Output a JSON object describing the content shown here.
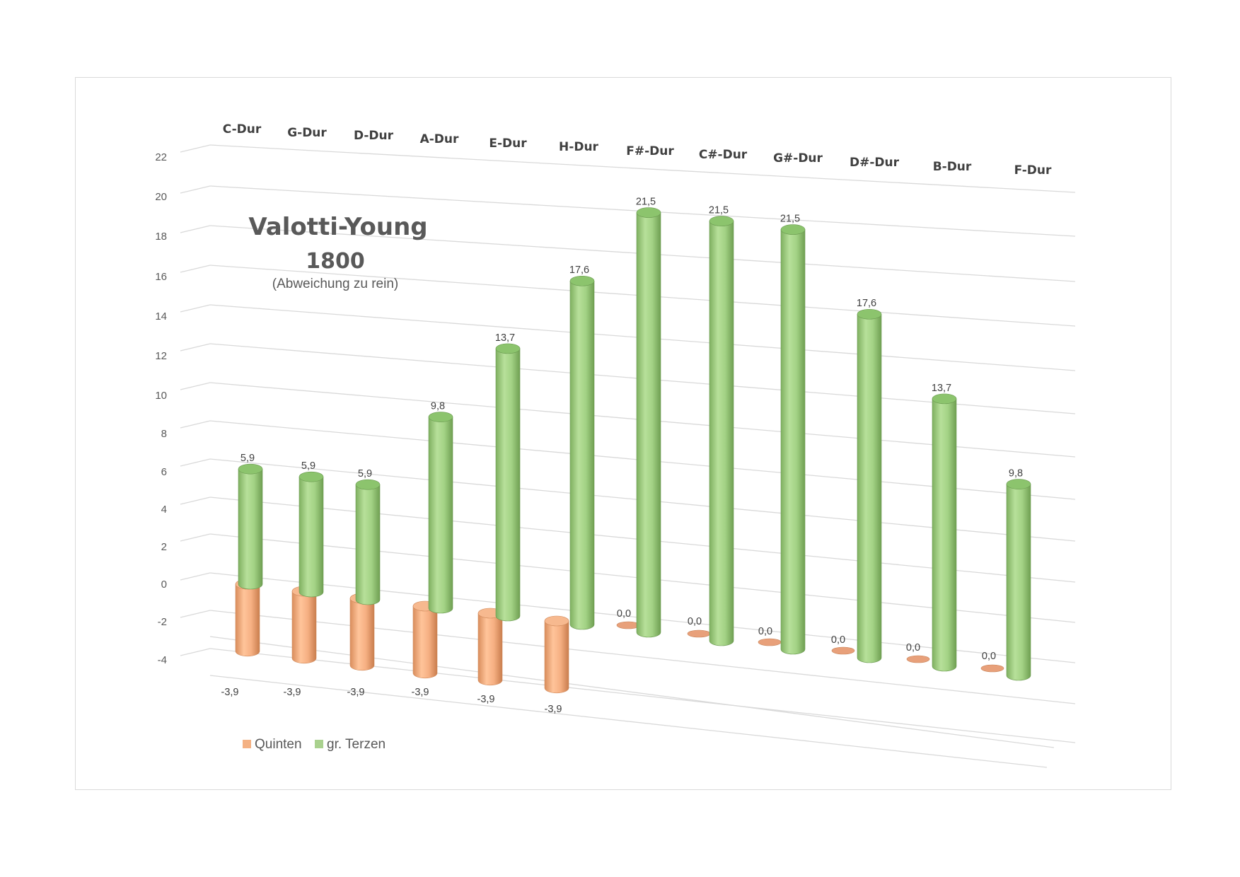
{
  "chart_data": {
    "type": "bar",
    "subtype": "3d-cylinder",
    "title": "Valotti-Young",
    "subtitle": "1800",
    "note": "(Abweichung zu rein)",
    "categories": [
      "C-Dur",
      "G-Dur",
      "D-Dur",
      "A-Dur",
      "E-Dur",
      "H-Dur",
      "F#-Dur",
      "C#-Dur",
      "G#-Dur",
      "D#-Dur",
      "B-Dur",
      "F-Dur"
    ],
    "series": [
      {
        "name": "Quinten",
        "color": "#f4b183",
        "values": [
          -3.9,
          -3.9,
          -3.9,
          -3.9,
          -3.9,
          -3.9,
          0.0,
          0.0,
          0.0,
          0.0,
          0.0,
          0.0
        ],
        "labels": [
          "-3,9",
          "-3,9",
          "-3,9",
          "-3,9",
          "-3,9",
          "-3,9",
          "0,0",
          "0,0",
          "0,0",
          "0,0",
          "0,0",
          "0,0"
        ]
      },
      {
        "name": "gr. Terzen",
        "color": "#a9d18e",
        "values": [
          5.9,
          5.9,
          5.9,
          9.8,
          13.7,
          17.6,
          21.5,
          21.5,
          21.5,
          17.6,
          13.7,
          9.8
        ],
        "labels": [
          "5,9",
          "5,9",
          "5,9",
          "9,8",
          "13,7",
          "17,6",
          "21,5",
          "21,5",
          "21,5",
          "17,6",
          "13,7",
          "9,8"
        ]
      }
    ],
    "ylim": [
      -4,
      22
    ],
    "yticks": [
      "22",
      "20",
      "18",
      "16",
      "14",
      "12",
      "10",
      "8",
      "6",
      "4",
      "2",
      "0",
      "-2",
      "-4"
    ],
    "grid": true,
    "legend": "bottom-left"
  }
}
